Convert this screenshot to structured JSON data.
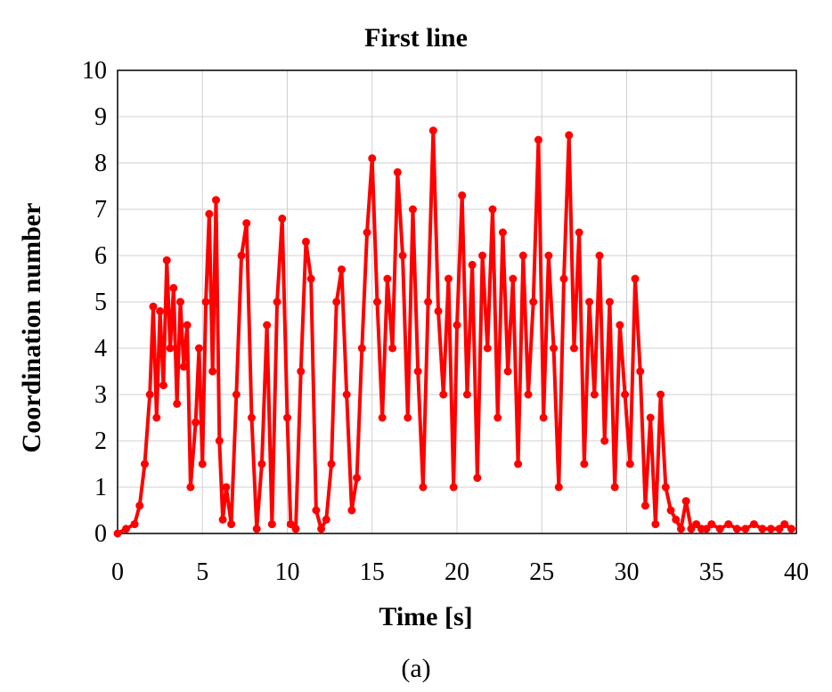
{
  "chart_data": {
    "type": "line",
    "title": "First line",
    "xlabel": "Time [s]",
    "ylabel": "Coordination number",
    "caption": "(a)",
    "xlim": [
      0,
      40
    ],
    "ylim": [
      0,
      10
    ],
    "xticks": [
      "0",
      "5",
      "10",
      "15",
      "20",
      "25",
      "30",
      "35",
      "40"
    ],
    "yticks": [
      "0",
      "1",
      "2",
      "3",
      "4",
      "5",
      "6",
      "7",
      "8",
      "9",
      "10"
    ],
    "grid": true,
    "legend": "none",
    "markers": true,
    "series_color": "#ff0000",
    "series": [
      {
        "x": [
          0,
          0.5,
          1,
          1.3,
          1.6,
          1.9,
          2.1,
          2.3,
          2.5,
          2.7,
          2.9,
          3.1,
          3.3,
          3.5,
          3.7,
          3.9,
          4.1,
          4.3,
          4.6,
          4.8,
          5.0,
          5.2,
          5.4,
          5.6,
          5.8,
          6.0,
          6.2,
          6.4,
          6.7,
          7.0,
          7.3,
          7.6,
          7.9,
          8.2,
          8.5,
          8.8,
          9.1,
          9.4,
          9.7,
          10.0,
          10.2,
          10.5,
          10.8,
          11.1,
          11.4,
          11.7,
          12.0,
          12.3,
          12.6,
          12.9,
          13.2,
          13.5,
          13.8,
          14.1,
          14.4,
          14.7,
          15.0,
          15.3,
          15.6,
          15.9,
          16.2,
          16.5,
          16.8,
          17.1,
          17.4,
          17.7,
          18.0,
          18.3,
          18.6,
          18.9,
          19.2,
          19.5,
          19.8,
          20.0,
          20.3,
          20.6,
          20.9,
          21.2,
          21.5,
          21.8,
          22.1,
          22.4,
          22.7,
          23.0,
          23.3,
          23.6,
          23.9,
          24.2,
          24.5,
          24.8,
          25.1,
          25.4,
          25.7,
          26.0,
          26.3,
          26.6,
          26.9,
          27.2,
          27.5,
          27.8,
          28.1,
          28.4,
          28.7,
          29.0,
          29.3,
          29.6,
          29.9,
          30.2,
          30.5,
          30.8,
          31.1,
          31.4,
          31.7,
          32.0,
          32.3,
          32.6,
          32.9,
          33.2,
          33.5,
          33.8,
          34.1,
          34.4,
          34.7,
          35.0,
          35.5,
          36.0,
          36.5,
          37.0,
          37.5,
          38.0,
          38.5,
          39.0,
          39.3,
          39.7
        ],
        "y": [
          0.0,
          0.1,
          0.2,
          0.6,
          1.5,
          3.0,
          4.9,
          2.5,
          4.8,
          3.2,
          5.9,
          4.0,
          5.3,
          2.8,
          5.0,
          3.6,
          4.5,
          1.0,
          2.4,
          4.0,
          1.5,
          5.0,
          6.9,
          3.5,
          7.2,
          2.0,
          0.3,
          1.0,
          0.2,
          3.0,
          6.0,
          6.7,
          2.5,
          0.1,
          1.5,
          4.5,
          0.2,
          5.0,
          6.8,
          2.5,
          0.2,
          0.1,
          3.5,
          6.3,
          5.5,
          0.5,
          0.1,
          0.3,
          1.5,
          5.0,
          5.7,
          3.0,
          0.5,
          1.2,
          4.0,
          6.5,
          8.1,
          5.0,
          2.5,
          5.5,
          4.0,
          7.8,
          6.0,
          2.5,
          7.0,
          3.5,
          1.0,
          5.0,
          8.7,
          4.8,
          3.0,
          5.5,
          1.0,
          4.5,
          7.3,
          3.0,
          5.8,
          1.2,
          6.0,
          4.0,
          7.0,
          2.5,
          6.5,
          3.5,
          5.5,
          1.5,
          6.0,
          3.0,
          5.0,
          8.5,
          2.5,
          6.0,
          4.0,
          1.0,
          5.5,
          8.6,
          4.0,
          6.5,
          1.5,
          5.0,
          3.0,
          6.0,
          2.0,
          5.0,
          1.0,
          4.5,
          3.0,
          1.5,
          5.5,
          3.5,
          0.6,
          2.5,
          0.2,
          3.0,
          1.0,
          0.5,
          0.3,
          0.1,
          0.7,
          0.1,
          0.2,
          0.1,
          0.1,
          0.2,
          0.1,
          0.2,
          0.1,
          0.1,
          0.2,
          0.1,
          0.1,
          0.1,
          0.2,
          0.1
        ]
      }
    ]
  }
}
